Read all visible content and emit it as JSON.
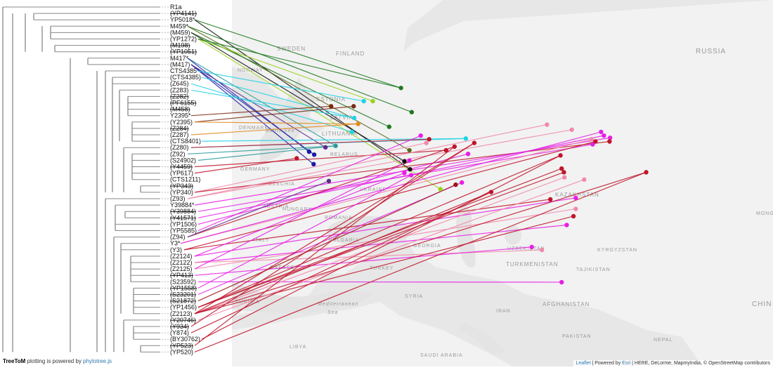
{
  "footer": {
    "brand": "TreeToM",
    "text_before_link": " plotting is powered by ",
    "link": "phylotree.js"
  },
  "attribution": {
    "leaflet": "Leaflet",
    "powered_by": " | Powered by ",
    "esri": "Esri",
    "sources": " | HERE, DeLorme, MapmyIndia, © OpenStreetMap contributors"
  },
  "tips": [
    {
      "label": "R1a",
      "struck": false
    },
    {
      "label": "(YP4141)",
      "struck": true
    },
    {
      "label": "YP5018*",
      "struck": false
    },
    {
      "label": "M459*",
      "struck": false
    },
    {
      "label": "(M459)",
      "struck": false
    },
    {
      "label": "(YP1272)",
      "struck": false
    },
    {
      "label": "(M198)",
      "struck": true
    },
    {
      "label": "(YP1051)",
      "struck": true
    },
    {
      "label": "M417*",
      "struck": false
    },
    {
      "label": "(M417)",
      "struck": false
    },
    {
      "label": "CTS4385*",
      "struck": false
    },
    {
      "label": "(CTS4385)",
      "struck": false
    },
    {
      "label": "(Z645)",
      "struck": false
    },
    {
      "label": "(Z283)",
      "struck": false
    },
    {
      "label": "(Z282)",
      "struck": true
    },
    {
      "label": "(PF6155)",
      "struck": true
    },
    {
      "label": "(M458)",
      "struck": true
    },
    {
      "label": "Y2395*",
      "struck": false
    },
    {
      "label": "(Y2395)",
      "struck": false
    },
    {
      "label": "(Z284)",
      "struck": true
    },
    {
      "label": "(Z287)",
      "struck": false
    },
    {
      "label": "(CTS8401)",
      "struck": false
    },
    {
      "label": "(Z280)",
      "struck": false
    },
    {
      "label": "(Z92)",
      "struck": false
    },
    {
      "label": "(S24902)",
      "struck": false
    },
    {
      "label": "(Y4459)",
      "struck": true
    },
    {
      "label": "(YP617)",
      "struck": false
    },
    {
      "label": "(CTS1211)",
      "struck": false
    },
    {
      "label": "(YP343)",
      "struck": true
    },
    {
      "label": "(YP340)",
      "struck": false
    },
    {
      "label": "(Z93)",
      "struck": false
    },
    {
      "label": "Y39884*",
      "struck": false
    },
    {
      "label": "(Y39884)",
      "struck": true
    },
    {
      "label": "(Y41571)",
      "struck": true
    },
    {
      "label": "(YP1506)",
      "struck": false
    },
    {
      "label": "(YP5585)",
      "struck": false
    },
    {
      "label": "(Z94)",
      "struck": false
    },
    {
      "label": "Y3*",
      "struck": false
    },
    {
      "label": "(Y3)",
      "struck": false
    },
    {
      "label": "(Z2124)",
      "struck": false
    },
    {
      "label": "(Z2122)",
      "struck": false
    },
    {
      "label": "(Z2125)",
      "struck": false
    },
    {
      "label": "(YP413)",
      "struck": true
    },
    {
      "label": "(S23592)",
      "struck": false
    },
    {
      "label": "(YP1558)",
      "struck": true
    },
    {
      "label": "(S23201)",
      "struck": true
    },
    {
      "label": "(S21872)",
      "struck": true
    },
    {
      "label": "(YP1456)",
      "struck": false
    },
    {
      "label": "(Z2123)",
      "struck": false
    },
    {
      "label": "(Y20746)",
      "struck": true
    },
    {
      "label": "(Y934)",
      "struck": true
    },
    {
      "label": "(Y874)",
      "struck": false
    },
    {
      "label": "(BY30762)",
      "struck": false
    },
    {
      "label": "(YP523)",
      "struck": true
    },
    {
      "label": "(YP520)",
      "struck": false
    }
  ],
  "map_labels": [
    {
      "text": "RUSSIA"
    },
    {
      "text": "SWEDEN"
    },
    {
      "text": "FINLAND"
    },
    {
      "text": "NORWAY"
    },
    {
      "text": "ESTONIA"
    },
    {
      "text": "LATVIA"
    },
    {
      "text": "LITHUANIA"
    },
    {
      "text": "DENMARK"
    },
    {
      "text": "Baltic Sea"
    },
    {
      "text": "BELARUS"
    },
    {
      "text": "GERMANY"
    },
    {
      "text": "CZECHIA"
    },
    {
      "text": "UKRAINE"
    },
    {
      "text": "AUSTRIA"
    },
    {
      "text": "HUNGARY"
    },
    {
      "text": "ROMANIA"
    },
    {
      "text": "KAZAKHSTAN"
    },
    {
      "text": "MONG"
    },
    {
      "text": "ITALY"
    },
    {
      "text": "BULGARIA"
    },
    {
      "text": "GEORGIA"
    },
    {
      "text": "UZBEKISTAN"
    },
    {
      "text": "KYRGYZSTAN"
    },
    {
      "text": "GREECE"
    },
    {
      "text": "TURKEY"
    },
    {
      "text": "TURKMENISTAN"
    },
    {
      "text": "TAJIKISTAN"
    },
    {
      "text": "CHIN"
    },
    {
      "text": "TUNISIA"
    },
    {
      "text": "Mediterranean"
    },
    {
      "text": "Sea"
    },
    {
      "text": "SYRIA"
    },
    {
      "text": "IRAN"
    },
    {
      "text": "AFGHANISTAN"
    },
    {
      "text": "LIBYA"
    },
    {
      "text": "SAUDI ARABIA"
    },
    {
      "text": "PAKISTAN"
    },
    {
      "text": "NEPAL"
    }
  ],
  "colors": {
    "darkgreen": "#1e7a1e",
    "lime": "#9ad21e",
    "black": "#111111",
    "navy": "#1a1aa8",
    "cyan": "#22d2e6",
    "orange": "#e08a1e",
    "brown": "#7a2a10",
    "purple": "#5a2a8a",
    "teal": "#2a9a9a",
    "magenta": "#e61ee6",
    "pink": "#f08aa8",
    "crimson": "#c0142a",
    "darkred": "#9a1414",
    "olive": "#5a6a1e"
  },
  "markers": [
    {
      "lat": 60.5,
      "lon": 30.0,
      "color": "darkgreen"
    },
    {
      "lat": 57.2,
      "lon": 31.9,
      "color": "darkgreen"
    },
    {
      "lat": 55.2,
      "lon": 27.9,
      "color": "darkgreen"
    },
    {
      "lat": 58.7,
      "lon": 25.0,
      "color": "lime"
    },
    {
      "lat": 58.7,
      "lon": 23.4,
      "color": "cyan"
    },
    {
      "lat": 56.4,
      "lon": 21.7,
      "color": "cyan"
    },
    {
      "lat": 54.5,
      "lon": 21.3,
      "color": "cyan"
    },
    {
      "lat": 55.6,
      "lon": 22.4,
      "color": "orange"
    },
    {
      "lat": 58.0,
      "lon": 17.6,
      "color": "brown"
    },
    {
      "lat": 58.0,
      "lon": 21.6,
      "color": "brown"
    },
    {
      "lat": 52.4,
      "lon": 16.6,
      "color": "purple"
    },
    {
      "lat": 52.6,
      "lon": 18.4,
      "color": "teal"
    },
    {
      "lat": 51.8,
      "lon": 13.7,
      "color": "navy"
    },
    {
      "lat": 51.4,
      "lon": 14.6,
      "color": "navy"
    },
    {
      "lat": 50.1,
      "lon": 14.5,
      "color": "navy"
    },
    {
      "lat": 50.9,
      "lon": 11.5,
      "color": "crimson"
    },
    {
      "lat": 52.0,
      "lon": 31.5,
      "color": "olive"
    },
    {
      "lat": 50.5,
      "lon": 30.6,
      "color": "black"
    },
    {
      "lat": 49.4,
      "lon": 31.6,
      "color": "black"
    },
    {
      "lat": 53.0,
      "lon": 34.5,
      "color": "pink"
    },
    {
      "lat": 52.0,
      "lon": 38.0,
      "color": "crimson"
    },
    {
      "lat": 52.5,
      "lon": 39.5,
      "color": "crimson"
    },
    {
      "lat": 53.6,
      "lon": 41.5,
      "color": "cyan"
    },
    {
      "lat": 53.0,
      "lon": 43.0,
      "color": "crimson"
    },
    {
      "lat": 51.5,
      "lon": 41.9,
      "color": "magenta"
    },
    {
      "lat": 54.0,
      "lon": 33.5,
      "color": "magenta"
    },
    {
      "lat": 53.5,
      "lon": 35.0,
      "color": "crimson"
    },
    {
      "lat": 50.6,
      "lon": 31.5,
      "color": "magenta"
    },
    {
      "lat": 46.7,
      "lon": 37.0,
      "color": "lime"
    },
    {
      "lat": 48.9,
      "lon": 30.6,
      "color": "magenta"
    },
    {
      "lat": 48.6,
      "lon": 31.8,
      "color": "magenta"
    },
    {
      "lat": 47.3,
      "lon": 39.7,
      "color": "darkred"
    },
    {
      "lat": 46.3,
      "lon": 46.0,
      "color": "crimson"
    },
    {
      "lat": 47.6,
      "lon": 40.8,
      "color": "magenta"
    },
    {
      "lat": 47.8,
      "lon": 17.2,
      "color": "purple"
    },
    {
      "lat": 51.3,
      "lon": 58.3,
      "color": "crimson"
    },
    {
      "lat": 49.5,
      "lon": 58.5,
      "color": "crimson"
    },
    {
      "lat": 49.0,
      "lon": 58.9,
      "color": "crimson"
    },
    {
      "lat": 48.3,
      "lon": 59.0,
      "color": "pink"
    },
    {
      "lat": 48.0,
      "lon": 62.5,
      "color": "pink"
    },
    {
      "lat": 52.8,
      "lon": 64.0,
      "color": "magenta"
    },
    {
      "lat": 53.5,
      "lon": 63.8,
      "color": "pink"
    },
    {
      "lat": 54.5,
      "lon": 65.5,
      "color": "magenta"
    },
    {
      "lat": 53.2,
      "lon": 64.5,
      "color": "crimson"
    },
    {
      "lat": 54.0,
      "lon": 66.0,
      "color": "magenta"
    },
    {
      "lat": 53.7,
      "lon": 67.1,
      "color": "magenta"
    },
    {
      "lat": 53.2,
      "lon": 67.0,
      "color": "crimson"
    },
    {
      "lat": 54.8,
      "lon": 60.3,
      "color": "pink"
    },
    {
      "lat": 55.5,
      "lon": 55.9,
      "color": "pink"
    },
    {
      "lat": 49.0,
      "lon": 73.5,
      "color": "crimson"
    },
    {
      "lat": 45.3,
      "lon": 56.5,
      "color": "crimson"
    },
    {
      "lat": 45.5,
      "lon": 61.0,
      "color": "magenta"
    },
    {
      "lat": 44.0,
      "lon": 61.0,
      "color": "pink"
    },
    {
      "lat": 43.0,
      "lon": 60.6,
      "color": "crimson"
    },
    {
      "lat": 41.8,
      "lon": 59.4,
      "color": "magenta"
    },
    {
      "lat": 38.4,
      "lon": 55.0,
      "color": "pink"
    },
    {
      "lat": 38.8,
      "lon": 53.2,
      "color": "magenta"
    },
    {
      "lat": 34.0,
      "lon": 58.5,
      "color": "magenta"
    }
  ],
  "connections": [
    {
      "tip": 2,
      "marker": 0
    },
    {
      "tip": 2,
      "marker": 18
    },
    {
      "tip": 3,
      "marker": 1
    },
    {
      "tip": 3,
      "marker": 16
    },
    {
      "tip": 4,
      "marker": 2
    },
    {
      "tip": 4,
      "marker": 17
    },
    {
      "tip": 5,
      "marker": 3
    },
    {
      "tip": 5,
      "marker": 28
    },
    {
      "tip": 5,
      "marker": 0
    },
    {
      "tip": 8,
      "marker": 11
    },
    {
      "tip": 8,
      "marker": 12
    },
    {
      "tip": 9,
      "marker": 13
    },
    {
      "tip": 9,
      "marker": 14
    },
    {
      "tip": 9,
      "marker": 10
    },
    {
      "tip": 10,
      "marker": 4
    },
    {
      "tip": 11,
      "marker": 5
    },
    {
      "tip": 12,
      "marker": 6
    },
    {
      "tip": 13,
      "marker": 5
    },
    {
      "tip": 17,
      "marker": 8
    },
    {
      "tip": 18,
      "marker": 9
    },
    {
      "tip": 18,
      "marker": 7
    },
    {
      "tip": 20,
      "marker": 7
    },
    {
      "tip": 21,
      "marker": 22
    },
    {
      "tip": 22,
      "marker": 22
    },
    {
      "tip": 22,
      "marker": 26
    },
    {
      "tip": 23,
      "marker": 11
    },
    {
      "tip": 24,
      "marker": 11
    },
    {
      "tip": 25,
      "marker": 20
    },
    {
      "tip": 26,
      "marker": 15
    },
    {
      "tip": 29,
      "marker": 19
    },
    {
      "tip": 29,
      "marker": 46
    },
    {
      "tip": 30,
      "marker": 47
    },
    {
      "tip": 30,
      "marker": 48
    },
    {
      "tip": 31,
      "marker": 45
    },
    {
      "tip": 32,
      "marker": 40
    },
    {
      "tip": 33,
      "marker": 44
    },
    {
      "tip": 34,
      "marker": 24
    },
    {
      "tip": 35,
      "marker": 25
    },
    {
      "tip": 36,
      "marker": 21
    },
    {
      "tip": 36,
      "marker": 34
    },
    {
      "tip": 37,
      "marker": 41
    },
    {
      "tip": 37,
      "marker": 42
    },
    {
      "tip": 38,
      "marker": 43
    },
    {
      "tip": 38,
      "marker": 50
    },
    {
      "tip": 39,
      "marker": 51
    },
    {
      "tip": 39,
      "marker": 29
    },
    {
      "tip": 40,
      "marker": 54
    },
    {
      "tip": 40,
      "marker": 55
    },
    {
      "tip": 41,
      "marker": 52
    },
    {
      "tip": 41,
      "marker": 27
    },
    {
      "tip": 42,
      "marker": 56
    },
    {
      "tip": 43,
      "marker": 57
    },
    {
      "tip": 44,
      "marker": 30
    },
    {
      "tip": 45,
      "marker": 33
    },
    {
      "tip": 46,
      "marker": 31
    },
    {
      "tip": 47,
      "marker": 35
    },
    {
      "tip": 47,
      "marker": 36
    },
    {
      "tip": 47,
      "marker": 37
    },
    {
      "tip": 48,
      "marker": 38
    },
    {
      "tip": 48,
      "marker": 49
    },
    {
      "tip": 48,
      "marker": 53
    },
    {
      "tip": 48,
      "marker": 23
    },
    {
      "tip": 48,
      "marker": 32
    },
    {
      "tip": 49,
      "marker": 39
    },
    {
      "tip": 50,
      "marker": 23
    },
    {
      "tip": 51,
      "marker": 32
    },
    {
      "tip": 52,
      "marker": 35
    },
    {
      "tip": 53,
      "marker": 21
    },
    {
      "tip": 54,
      "marker": 49
    }
  ]
}
